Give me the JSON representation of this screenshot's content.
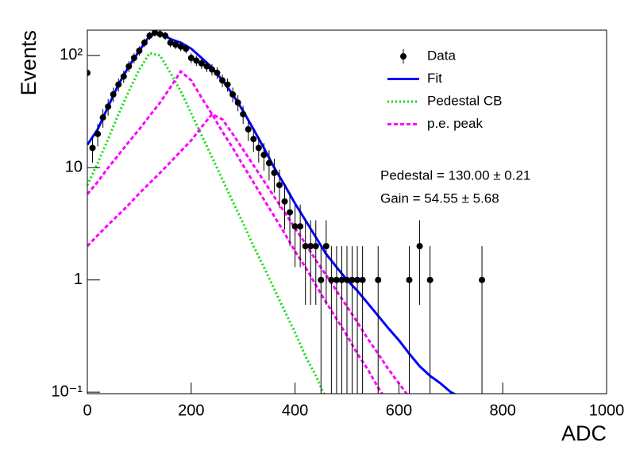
{
  "chart_data": {
    "type": "histogram-fit",
    "xlabel": "ADC",
    "ylabel": "Events",
    "xlim": [
      0,
      1000
    ],
    "xticks": [
      0,
      200,
      400,
      600,
      800,
      1000
    ],
    "ylim": [
      0.097,
      168
    ],
    "yscale": "log",
    "yticks": [
      {
        "value": 0.1,
        "label": "10⁻¹"
      },
      1,
      10,
      {
        "value": 100,
        "label": "10²"
      }
    ],
    "legend_position": "upper-right",
    "annotations": [
      "Pedestal = 130.00 ± 0.21",
      "Gain = 54.55 ± 5.68"
    ],
    "series": [
      {
        "name": "Data",
        "kind": "points",
        "color": "#000000",
        "x": [
          0,
          10,
          20,
          30,
          40,
          50,
          60,
          70,
          80,
          90,
          100,
          110,
          120,
          130,
          140,
          150,
          160,
          170,
          180,
          190,
          200,
          210,
          220,
          230,
          240,
          250,
          260,
          270,
          280,
          290,
          300,
          310,
          320,
          330,
          340,
          350,
          360,
          370,
          380,
          390,
          400,
          410,
          420,
          430,
          440,
          450,
          460,
          470,
          480,
          490,
          500,
          510,
          520,
          530,
          560,
          620,
          640,
          660,
          760
        ],
        "values": [
          70,
          15,
          20,
          28,
          35,
          45,
          55,
          65,
          80,
          95,
          110,
          130,
          150,
          160,
          155,
          150,
          130,
          125,
          120,
          115,
          95,
          90,
          85,
          80,
          75,
          70,
          60,
          55,
          45,
          38,
          30,
          22,
          18,
          15,
          13,
          11,
          9,
          7,
          5,
          4,
          3,
          3,
          2,
          2,
          2,
          1,
          2,
          1,
          1,
          1,
          1,
          1,
          1,
          1,
          1,
          1,
          2,
          1,
          1
        ],
        "errors": [
          8.4,
          3.9,
          4.5,
          5.3,
          5.9,
          6.7,
          7.4,
          8.1,
          8.9,
          9.7,
          10.5,
          11.4,
          12.2,
          12.6,
          12.4,
          12.2,
          11.4,
          11.2,
          11,
          10.7,
          9.7,
          9.5,
          9.2,
          8.9,
          8.7,
          8.4,
          7.7,
          7.4,
          6.7,
          6.2,
          5.5,
          4.7,
          4.2,
          3.9,
          3.6,
          3.3,
          3,
          2.6,
          2.2,
          2,
          1.7,
          1.7,
          1.4,
          1.4,
          1.4,
          1,
          1.4,
          1,
          1,
          1,
          1,
          1,
          1,
          1,
          1,
          1,
          1.4,
          1,
          1
        ]
      },
      {
        "name": "Fit",
        "kind": "line",
        "style": "solid",
        "color": "#0000ff",
        "x": [
          0,
          20,
          40,
          60,
          80,
          100,
          120,
          140,
          160,
          180,
          200,
          220,
          240,
          260,
          280,
          300,
          320,
          340,
          360,
          380,
          400,
          420,
          440,
          460,
          480,
          500,
          520,
          540,
          560,
          580,
          600,
          620,
          640,
          660,
          680,
          700,
          720
        ],
        "values": [
          16,
          22,
          35,
          55,
          80,
          110,
          150,
          160,
          140,
          130,
          115,
          95,
          78,
          60,
          45,
          32,
          22,
          15,
          10,
          7,
          4.8,
          3.4,
          2.4,
          1.7,
          1.3,
          1.0,
          0.8,
          0.62,
          0.48,
          0.37,
          0.29,
          0.22,
          0.17,
          0.14,
          0.12,
          0.1,
          0.09
        ]
      },
      {
        "name": "Pedestal CB",
        "kind": "line",
        "style": "dotted",
        "color": "#00e000",
        "x": [
          0,
          20,
          40,
          60,
          80,
          100,
          120,
          140,
          160,
          180,
          200,
          220,
          240,
          260,
          280,
          300,
          320,
          340,
          360,
          380,
          400,
          420,
          440,
          460
        ],
        "values": [
          7,
          11,
          18,
          30,
          48,
          75,
          105,
          100,
          70,
          48,
          30.6,
          19.5,
          12.4,
          7.9,
          5.0,
          3.2,
          2.0,
          1.3,
          0.83,
          0.53,
          0.34,
          0.21,
          0.14,
          0.087
        ]
      },
      {
        "name": "p.e. peak",
        "kind": "line",
        "style": "dashed",
        "color": "#ff00ff",
        "x": [
          0,
          20,
          40,
          60,
          80,
          100,
          120,
          140,
          160,
          180,
          200,
          220,
          240,
          260,
          280,
          300,
          320,
          340,
          360,
          380,
          400,
          420,
          440,
          460,
          480,
          500,
          520,
          540,
          560,
          580
        ],
        "values": [
          5.8,
          7.5,
          10,
          13,
          17,
          22,
          29,
          38,
          52,
          72,
          60,
          42,
          30,
          21,
          15,
          10.5,
          7.4,
          5.2,
          3.7,
          2.6,
          1.8,
          1.3,
          0.9,
          0.63,
          0.45,
          0.32,
          0.22,
          0.16,
          0.11,
          0.08
        ]
      },
      {
        "name": "p.e. peak",
        "kind": "line",
        "style": "dashed",
        "color": "#ff00ff",
        "show_in_legend": false,
        "x": [
          0,
          20,
          40,
          60,
          80,
          100,
          120,
          140,
          160,
          180,
          200,
          220,
          240,
          260,
          280,
          300,
          320,
          340,
          360,
          380,
          400,
          420,
          440,
          460,
          480,
          500,
          520,
          540,
          560,
          580,
          600,
          620
        ],
        "values": [
          2,
          2.5,
          3.1,
          3.8,
          4.7,
          5.9,
          7.3,
          9,
          11.2,
          14,
          17.5,
          23,
          30,
          27,
          20,
          14.5,
          10.5,
          7.6,
          5.5,
          4.0,
          2.9,
          2.1,
          1.5,
          1.1,
          0.8,
          0.58,
          0.42,
          0.3,
          0.22,
          0.16,
          0.12,
          0.09
        ]
      }
    ]
  }
}
